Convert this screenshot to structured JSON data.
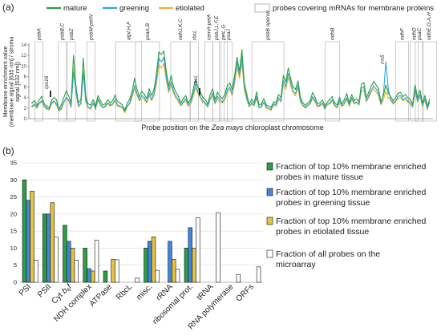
{
  "chart_data": [
    {
      "panel": "(a)",
      "type": "line",
      "xlabel_parts": [
        "Probe position on the ",
        "Zea mays",
        " chloroplast chromosome"
      ],
      "ylabel_lines": [
        "Membrane enrichment value",
        "(membrane signal [635 nm] / stroma",
        "signal [532 nm])"
      ],
      "ylim": [
        0,
        14
      ],
      "yticks": [
        0,
        2,
        4,
        6,
        8,
        10,
        12,
        14
      ],
      "grid": false,
      "legend_position": "top",
      "legend_box_label": "probes covering mRNAs for membrane proteins",
      "series": [
        {
          "name": "mature",
          "color": "#2e9e44",
          "values": [
            3.0,
            3.4,
            2.6,
            3.6,
            4.2,
            2.8,
            2.4,
            2.0,
            3.5,
            4.0,
            3.6,
            1.8,
            2.6,
            4.0,
            5.2,
            4.4,
            3.0,
            12.0,
            6.0,
            3.0,
            3.6,
            11.5,
            4.2,
            2.8,
            2.6,
            3.6,
            2.4,
            4.4,
            3.4,
            2.6,
            2.8,
            3.6,
            3.0,
            3.4,
            4.4,
            3.2,
            3.0,
            2.6,
            1.6,
            3.0,
            3.6,
            5.2,
            7.6,
            5.6,
            4.2,
            5.2,
            4.6,
            3.8,
            5.6,
            4.4,
            5.6,
            8.6,
            12.6,
            12.2,
            12.8,
            9.0,
            6.2,
            8.2,
            6.0,
            5.0,
            4.2,
            3.0,
            3.8,
            4.4,
            3.0,
            3.6,
            5.4,
            7.4,
            6.0,
            5.0,
            4.0,
            3.6,
            2.8,
            4.6,
            5.6,
            3.6,
            5.0,
            4.2,
            3.8,
            4.6,
            6.2,
            6.8,
            5.6,
            8.2,
            11.6,
            9.0,
            13.0,
            6.8,
            4.6,
            2.8,
            3.6,
            3.0,
            5.0,
            2.6,
            2.8,
            3.8,
            2.6,
            2.4,
            2.2,
            3.2,
            3.0,
            4.6,
            4.0,
            8.2,
            7.0,
            9.6,
            7.6,
            6.0,
            5.6,
            7.2,
            4.0,
            3.0,
            2.6,
            3.0,
            3.4,
            5.0,
            4.0,
            2.8,
            3.0,
            3.6,
            2.4,
            3.2,
            3.6,
            4.2,
            3.0,
            2.6,
            4.0,
            2.8,
            3.6,
            4.8,
            3.0,
            4.6,
            3.4,
            3.8,
            3.2,
            6.6,
            6.8,
            4.0,
            5.0,
            6.2,
            7.0,
            6.4,
            5.6,
            3.2,
            4.4,
            6.4,
            4.8,
            4.2,
            3.4,
            4.0,
            4.8,
            5.0,
            4.2,
            4.6,
            4.0,
            3.6,
            2.8,
            6.4,
            4.0,
            5.4,
            3.0,
            4.4,
            2.4,
            3.8
          ]
        },
        {
          "name": "greening",
          "color": "#2ba7d8",
          "values": [
            2.4,
            2.8,
            2.2,
            3.0,
            3.4,
            2.4,
            2.0,
            1.8,
            3.0,
            3.4,
            2.8,
            1.6,
            2.0,
            3.2,
            4.0,
            3.6,
            2.4,
            8.8,
            5.2,
            2.4,
            3.0,
            8.6,
            3.6,
            2.2,
            2.0,
            3.0,
            2.0,
            3.8,
            2.8,
            2.2,
            2.4,
            3.0,
            2.6,
            2.8,
            3.6,
            2.6,
            2.4,
            2.2,
            1.4,
            2.4,
            3.0,
            4.4,
            6.2,
            4.8,
            3.6,
            4.4,
            4.0,
            3.2,
            4.8,
            3.6,
            4.8,
            7.4,
            11.4,
            10.8,
            11.6,
            8.0,
            5.4,
            7.0,
            5.2,
            4.2,
            3.6,
            2.6,
            3.2,
            3.8,
            2.6,
            3.0,
            4.6,
            6.4,
            5.2,
            4.2,
            3.4,
            3.0,
            2.4,
            3.8,
            4.8,
            3.0,
            4.2,
            3.6,
            3.2,
            3.8,
            5.4,
            6.0,
            4.8,
            7.2,
            10.8,
            8.2,
            11.8,
            6.0,
            4.0,
            2.4,
            3.0,
            2.6,
            4.2,
            2.2,
            2.4,
            3.2,
            2.2,
            2.0,
            1.8,
            2.8,
            2.6,
            4.0,
            3.4,
            7.2,
            6.2,
            8.6,
            6.8,
            5.2,
            4.8,
            6.4,
            3.4,
            2.6,
            2.2,
            2.6,
            3.0,
            4.2,
            3.4,
            2.4,
            2.6,
            3.0,
            2.0,
            2.8,
            3.0,
            3.6,
            2.6,
            2.2,
            3.4,
            2.4,
            3.0,
            4.0,
            2.6,
            4.0,
            3.0,
            3.2,
            2.8,
            5.8,
            6.0,
            3.4,
            4.4,
            5.4,
            6.2,
            5.6,
            4.8,
            2.8,
            4.6,
            10.8,
            5.6,
            3.6,
            3.0,
            3.4,
            4.2,
            4.4,
            3.6,
            4.0,
            3.4,
            3.0,
            2.4,
            5.6,
            3.4,
            4.6,
            2.6,
            3.8,
            2.0,
            3.2
          ]
        },
        {
          "name": "etiolated",
          "color": "#f2b324",
          "values": [
            2.2,
            2.6,
            2.0,
            2.8,
            3.2,
            2.2,
            1.8,
            1.6,
            2.8,
            3.2,
            2.6,
            1.4,
            1.8,
            3.0,
            3.8,
            3.4,
            2.2,
            9.6,
            4.8,
            2.2,
            2.8,
            9.2,
            3.2,
            2.0,
            1.8,
            2.8,
            1.8,
            3.4,
            2.6,
            2.0,
            2.2,
            2.8,
            2.4,
            2.6,
            3.4,
            2.4,
            2.2,
            2.0,
            1.2,
            2.2,
            2.8,
            4.0,
            5.8,
            4.4,
            3.4,
            4.0,
            3.6,
            3.0,
            4.4,
            3.4,
            4.4,
            6.6,
            10.2,
            9.6,
            10.4,
            7.2,
            5.0,
            6.4,
            4.8,
            3.8,
            3.2,
            2.4,
            3.0,
            3.4,
            2.4,
            2.8,
            4.2,
            5.8,
            4.8,
            3.8,
            3.0,
            2.8,
            2.2,
            3.6,
            4.4,
            2.8,
            3.8,
            3.2,
            3.0,
            3.6,
            4.8,
            5.6,
            4.4,
            6.6,
            9.8,
            7.6,
            10.6,
            5.4,
            3.6,
            2.2,
            2.8,
            2.4,
            3.8,
            2.0,
            2.2,
            3.0,
            2.0,
            1.8,
            1.6,
            2.6,
            2.4,
            3.6,
            3.2,
            6.6,
            5.6,
            7.8,
            6.2,
            4.8,
            4.4,
            5.8,
            3.2,
            2.4,
            2.0,
            2.4,
            2.8,
            3.8,
            3.2,
            2.2,
            2.4,
            2.8,
            1.8,
            2.6,
            2.8,
            3.4,
            2.4,
            2.0,
            3.2,
            2.2,
            2.8,
            3.6,
            2.4,
            3.6,
            2.8,
            3.0,
            2.6,
            5.2,
            5.4,
            3.2,
            4.0,
            5.0,
            5.6,
            5.0,
            4.4,
            2.6,
            3.6,
            5.2,
            4.0,
            3.4,
            2.8,
            3.2,
            3.8,
            4.0,
            3.4,
            3.6,
            3.2,
            2.8,
            2.2,
            5.0,
            3.2,
            4.2,
            2.4,
            3.4,
            1.8,
            3.0
          ]
        }
      ],
      "gene_labels": [
        {
          "text": "psbA",
          "pos": 0.01
        },
        {
          "text": "psbB,C",
          "pos": 0.1
        },
        {
          "text": "psbZ",
          "pos": 0.135
        },
        {
          "text": "psbM-petN",
          "pos": 0.21
        },
        {
          "text": "atpI,H,F",
          "pos": 0.32
        },
        {
          "text": "psaA,B",
          "pos": 0.395
        },
        {
          "text": "ndhJ,K,C",
          "pos": 0.53
        },
        {
          "text": "rbcL",
          "pos": 0.605
        },
        {
          "text": "cemA-petA",
          "pos": 0.66
        },
        {
          "text": "psbJ,L,F,E",
          "pos": 0.69
        },
        {
          "text": "petL,G",
          "pos": 0.715
        },
        {
          "text": "psaJ",
          "pos": 0.735
        },
        {
          "text": "psbB operon",
          "pos": 0.84
        },
        {
          "text": "ndhB",
          "pos": 1.12
        },
        {
          "text": "ndhF",
          "pos": 1.39
        },
        {
          "text": "ndhD",
          "pos": 1.445
        },
        {
          "text": "psaC",
          "pos": 1.465
        },
        {
          "text": "ndhE,G,A,H",
          "pos": 1.49
        }
      ],
      "annotations": [
        "rps16",
        "rbcL",
        "rrn5"
      ]
    },
    {
      "panel": "(b)",
      "type": "bar",
      "ylim": [
        0,
        35
      ],
      "yticks": [
        0,
        5,
        10,
        15,
        20,
        25,
        30,
        35
      ],
      "grid": true,
      "legend_position": "right",
      "categories": [
        "PSI",
        "PSII",
        "Cyt b6f",
        "NDH complex",
        "ATPase",
        "RbcL",
        "misc.",
        "rRNA",
        "ribosomal prot.",
        "tRNA",
        "RNA polymerase",
        "ORFs"
      ],
      "series": [
        {
          "name": "Fraction of top 10% membrane enriched probes in mature tissue",
          "color": "#2e9e44",
          "values": [
            30,
            20,
            16.7,
            10,
            3.3,
            0,
            10,
            0,
            10,
            0,
            0,
            0
          ]
        },
        {
          "name": "Fraction of top 10% membrane enriched probes in greening tissue",
          "color": "#3f87e0",
          "values": [
            24,
            20,
            12,
            4,
            0,
            0,
            12,
            12,
            16,
            0,
            0,
            0
          ]
        },
        {
          "name": "Fraction of top 10% membrane enriched probes in etiolated tissue",
          "color": "#e7c43e",
          "values": [
            26.7,
            23.3,
            10,
            3.3,
            6.7,
            0,
            13.3,
            6.7,
            10,
            0,
            0,
            0
          ]
        },
        {
          "name": "Fraction of all probes on the microarray",
          "color": "#ffffff",
          "values": [
            6.5,
            13.2,
            6.5,
            12.3,
            6.6,
            1.2,
            3.5,
            3.8,
            18.9,
            20.4,
            2.3,
            4.5
          ]
        }
      ]
    }
  ]
}
